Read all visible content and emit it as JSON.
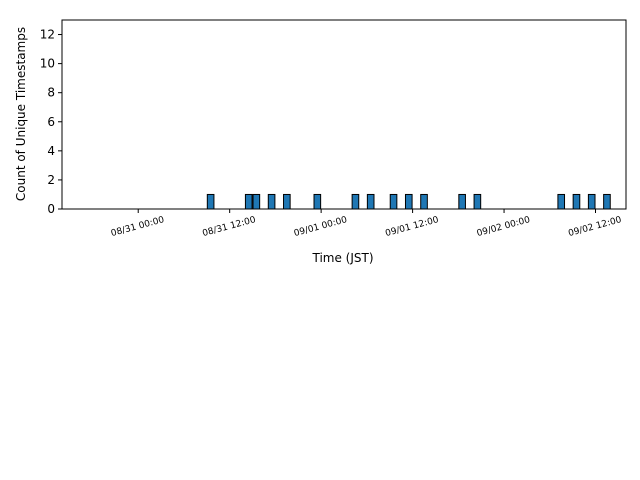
{
  "chart_data": {
    "type": "histogram",
    "xlabel": "Time (JST)",
    "ylabel": "Count of Unique Timestamps",
    "color": "#1f77b4",
    "edgecolor": "#000000",
    "bins": [
      "08/30 17:00",
      "08/30 18:00",
      "08/30 19:00",
      "08/30 20:00",
      "08/30 21:00",
      "08/30 22:00",
      "08/30 23:00",
      "08/31 00:00",
      "08/31 01:00",
      "08/31 02:00",
      "08/31 03:00",
      "08/31 04:00",
      "08/31 05:00",
      "08/31 06:00",
      "08/31 07:00",
      "08/31 08:00",
      "08/31 09:00",
      "08/31 10:00",
      "08/31 11:00",
      "08/31 12:00",
      "08/31 13:00",
      "08/31 14:00",
      "08/31 15:00",
      "08/31 16:00",
      "08/31 17:00",
      "08/31 18:00",
      "08/31 19:00",
      "08/31 20:00",
      "08/31 21:00",
      "08/31 22:00",
      "08/31 23:00",
      "09/01 00:00",
      "09/01 01:00",
      "09/01 02:00",
      "09/01 03:00",
      "09/01 04:00",
      "09/01 05:00",
      "09/01 06:00",
      "09/01 07:00",
      "09/01 08:00",
      "09/01 09:00",
      "09/01 10:00",
      "09/01 11:00",
      "09/01 12:00",
      "09/01 13:00",
      "09/01 14:00",
      "09/01 15:00",
      "09/01 16:00",
      "09/01 17:00",
      "09/01 18:00",
      "09/01 19:00",
      "09/01 20:00",
      "09/01 21:00",
      "09/01 22:00",
      "09/01 23:00",
      "09/02 00:00",
      "09/02 01:00",
      "09/02 02:00",
      "09/02 03:00",
      "09/02 04:00",
      "09/02 05:00",
      "09/02 06:00",
      "09/02 07:00",
      "09/02 08:00",
      "09/02 09:00",
      "09/02 10:00",
      "09/02 11:00",
      "09/02 12:00",
      "09/02 13:00",
      "09/02 14:00"
    ],
    "values": [
      0,
      0,
      0,
      0,
      0,
      0,
      0,
      0,
      0,
      0,
      0,
      0,
      0,
      0,
      0,
      0,
      1,
      0,
      0,
      0,
      0,
      1,
      1,
      0,
      1,
      0,
      1,
      0,
      0,
      0,
      1,
      0,
      0,
      0,
      0,
      1,
      0,
      1,
      0,
      0,
      1,
      0,
      1,
      0,
      1,
      0,
      0,
      0,
      0,
      1,
      0,
      1,
      0,
      0,
      0,
      0,
      0,
      0,
      0,
      0,
      0,
      0,
      1,
      0,
      1,
      0,
      1,
      0,
      1
    ],
    "xlim": [
      "08/30 14:00",
      "09/02 16:00"
    ],
    "xticks": [
      "08/31 00:00",
      "08/31 12:00",
      "09/01 00:00",
      "09/01 12:00",
      "09/02 00:00",
      "09/02 12:00"
    ],
    "ylim": [
      0,
      13
    ],
    "yticks": [
      0,
      2,
      4,
      6,
      8,
      10,
      12
    ]
  }
}
